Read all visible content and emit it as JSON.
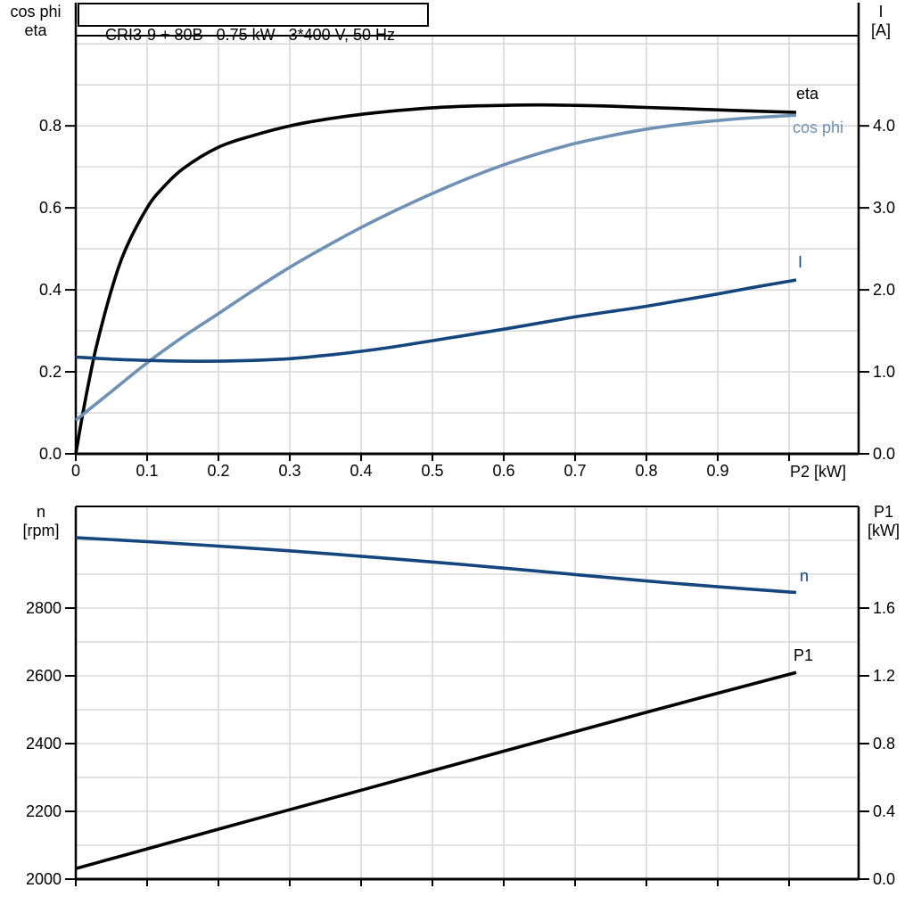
{
  "colors": {
    "curve_black": "#000000",
    "cos_phi_blue": "#6e91b4",
    "navy_blue": "#14467d",
    "grid_gray": "#d9d9d9",
    "frame_black": "#000000"
  },
  "chart_data": [
    {
      "type": "line",
      "title": "CRI3-9 + 80B   0.75 kW   3*400 V, 50 Hz",
      "x": {
        "label": "P2 [kW]",
        "min": 0,
        "max": 1.0975,
        "grid_step": 0.1,
        "tick_values": [
          0,
          0.1,
          0.2,
          0.3,
          0.4,
          0.5,
          0.6,
          0.7,
          0.8,
          0.9,
          1.0
        ],
        "tick_labels": [
          "0",
          "0.1",
          "0.2",
          "0.3",
          "0.4",
          "0.5",
          "0.6",
          "0.7",
          "0.8",
          "0.9",
          ""
        ]
      },
      "y_left": {
        "label": [
          "cos phi",
          "eta"
        ],
        "min": 0,
        "max": 1.02,
        "grid_step": 0.1,
        "tick_values": [
          0,
          0.2,
          0.4,
          0.6,
          0.8
        ],
        "tick_labels": [
          "0.0",
          "0.2",
          "0.4",
          "0.6",
          "0.8"
        ]
      },
      "y_right": {
        "label": [
          "I",
          "[A]"
        ],
        "min": 0,
        "max": 5.1,
        "grid_step": 0.5,
        "tick_values": [
          0,
          1,
          2,
          3,
          4
        ],
        "tick_labels": [
          "0.0",
          "1.0",
          "2.0",
          "3.0",
          "4.0"
        ]
      },
      "series": [
        {
          "name": "eta",
          "label": "eta",
          "axis": "left",
          "color": "curve_black",
          "points": [
            [
              0,
              0
            ],
            [
              0.01,
              0.1
            ],
            [
              0.02,
              0.19
            ],
            [
              0.03,
              0.27
            ],
            [
              0.05,
              0.4
            ],
            [
              0.07,
              0.5
            ],
            [
              0.1,
              0.6
            ],
            [
              0.12,
              0.645
            ],
            [
              0.15,
              0.695
            ],
            [
              0.2,
              0.748
            ],
            [
              0.25,
              0.777
            ],
            [
              0.3,
              0.8
            ],
            [
              0.35,
              0.816
            ],
            [
              0.4,
              0.828
            ],
            [
              0.45,
              0.837
            ],
            [
              0.5,
              0.844
            ],
            [
              0.55,
              0.848
            ],
            [
              0.6,
              0.85
            ],
            [
              0.65,
              0.851
            ],
            [
              0.7,
              0.85
            ],
            [
              0.75,
              0.848
            ],
            [
              0.8,
              0.845
            ],
            [
              0.85,
              0.842
            ],
            [
              0.9,
              0.839
            ],
            [
              0.95,
              0.836
            ],
            [
              1.01,
              0.833
            ]
          ]
        },
        {
          "name": "cos phi",
          "label": "cos phi",
          "axis": "left",
          "color": "cos_phi_blue",
          "points": [
            [
              0,
              0.082
            ],
            [
              0.05,
              0.152
            ],
            [
              0.1,
              0.222
            ],
            [
              0.15,
              0.285
            ],
            [
              0.2,
              0.342
            ],
            [
              0.25,
              0.4
            ],
            [
              0.3,
              0.455
            ],
            [
              0.35,
              0.505
            ],
            [
              0.4,
              0.552
            ],
            [
              0.45,
              0.595
            ],
            [
              0.5,
              0.635
            ],
            [
              0.55,
              0.672
            ],
            [
              0.6,
              0.705
            ],
            [
              0.65,
              0.733
            ],
            [
              0.7,
              0.757
            ],
            [
              0.75,
              0.776
            ],
            [
              0.8,
              0.792
            ],
            [
              0.85,
              0.804
            ],
            [
              0.9,
              0.813
            ],
            [
              0.95,
              0.82
            ],
            [
              1.01,
              0.826
            ]
          ]
        },
        {
          "name": "I",
          "label": "I",
          "axis": "right",
          "color": "navy_blue",
          "points": [
            [
              0,
              1.18
            ],
            [
              0.05,
              1.155
            ],
            [
              0.1,
              1.14
            ],
            [
              0.15,
              1.13
            ],
            [
              0.2,
              1.13
            ],
            [
              0.25,
              1.14
            ],
            [
              0.3,
              1.16
            ],
            [
              0.35,
              1.2
            ],
            [
              0.4,
              1.25
            ],
            [
              0.45,
              1.31
            ],
            [
              0.5,
              1.38
            ],
            [
              0.55,
              1.45
            ],
            [
              0.6,
              1.52
            ],
            [
              0.65,
              1.595
            ],
            [
              0.7,
              1.67
            ],
            [
              0.75,
              1.735
            ],
            [
              0.8,
              1.8
            ],
            [
              0.85,
              1.875
            ],
            [
              0.9,
              1.95
            ],
            [
              0.95,
              2.03
            ],
            [
              1.01,
              2.12
            ]
          ]
        }
      ]
    },
    {
      "type": "line",
      "title": "",
      "x": {
        "label": "",
        "min": 0,
        "max": 1.0975,
        "grid_step": 0.1,
        "tick_values": [
          0,
          0.1,
          0.2,
          0.3,
          0.4,
          0.5,
          0.6,
          0.7,
          0.8,
          0.9,
          1.0
        ],
        "tick_labels": [
          "",
          "",
          "",
          "",
          "",
          "",
          "",
          "",
          "",
          "",
          ""
        ]
      },
      "y_left": {
        "label": [
          "n",
          "[rpm]"
        ],
        "min": 2000,
        "max": 3100,
        "grid_step": 100,
        "tick_values": [
          2000,
          2200,
          2400,
          2600,
          2800
        ],
        "tick_labels": [
          "2000",
          "2200",
          "2400",
          "2600",
          "2800"
        ]
      },
      "y_right": {
        "label": [
          "P1",
          "[kW]"
        ],
        "min": 0,
        "max": 2.2,
        "grid_step": 0.2,
        "tick_values": [
          0,
          0.4,
          0.8,
          1.2,
          1.6
        ],
        "tick_labels": [
          "0.0",
          "0.4",
          "0.8",
          "1.2",
          "1.6"
        ]
      },
      "series": [
        {
          "name": "n",
          "label": "n",
          "axis": "left",
          "color": "navy_blue",
          "points": [
            [
              0,
              3008
            ],
            [
              0.1,
              2996
            ],
            [
              0.2,
              2983
            ],
            [
              0.3,
              2969
            ],
            [
              0.4,
              2953
            ],
            [
              0.5,
              2936
            ],
            [
              0.6,
              2918
            ],
            [
              0.7,
              2899
            ],
            [
              0.8,
              2880
            ],
            [
              0.9,
              2863
            ],
            [
              1.01,
              2846
            ]
          ]
        },
        {
          "name": "P1",
          "label": "P1",
          "axis": "right",
          "color": "curve_black",
          "points": [
            [
              0,
              0.062
            ],
            [
              0.2,
              0.295
            ],
            [
              0.4,
              0.525
            ],
            [
              0.6,
              0.755
            ],
            [
              0.8,
              0.985
            ],
            [
              1.01,
              1.22
            ]
          ]
        }
      ]
    }
  ]
}
